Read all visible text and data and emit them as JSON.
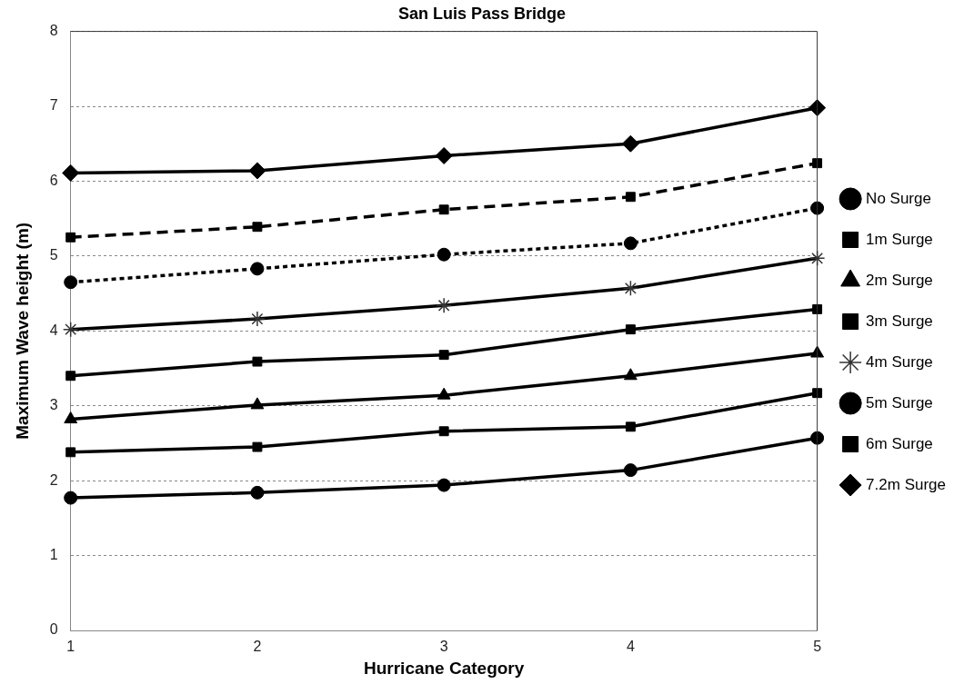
{
  "chart_data": {
    "type": "line",
    "title": "San Luis Pass Bridge",
    "xlabel": "Hurricane Category",
    "ylabel": "Maximum Wave height (m)",
    "categories": [
      "1",
      "2",
      "3",
      "4",
      "5"
    ],
    "ylim": [
      0,
      8
    ],
    "yticks": [
      0,
      1,
      2,
      3,
      4,
      5,
      6,
      7,
      8
    ],
    "grid": "y",
    "legend": "right",
    "series": [
      {
        "name": "No Surge",
        "color": "#000000",
        "marker": "circle",
        "line_style": "solid",
        "values": [
          1.77,
          1.84,
          1.94,
          2.14,
          2.57
        ]
      },
      {
        "name": "1m Surge",
        "color": "#000000",
        "marker": "square",
        "line_style": "solid",
        "values": [
          2.38,
          2.45,
          2.66,
          2.72,
          3.17
        ]
      },
      {
        "name": "2m Surge",
        "color": "#000000",
        "marker": "triangle",
        "line_style": "solid",
        "values": [
          2.82,
          3.01,
          3.14,
          3.4,
          3.7
        ]
      },
      {
        "name": "3m Surge",
        "color": "#000000",
        "marker": "square",
        "line_style": "solid",
        "values": [
          3.4,
          3.59,
          3.68,
          4.02,
          4.29
        ]
      },
      {
        "name": "4m Surge",
        "color": "#000000",
        "marker": "cross",
        "line_style": "solid",
        "values": [
          4.02,
          4.16,
          4.34,
          4.57,
          4.97
        ]
      },
      {
        "name": "5m Surge",
        "color": "#000000",
        "marker": "circle",
        "line_style": "dotted",
        "values": [
          4.65,
          4.83,
          5.02,
          5.17,
          5.64
        ]
      },
      {
        "name": "6m Surge",
        "color": "#000000",
        "marker": "square",
        "line_style": "dashed",
        "values": [
          5.25,
          5.39,
          5.62,
          5.79,
          6.24
        ]
      },
      {
        "name": "7.2m Surge",
        "color": "#000000",
        "marker": "diamond",
        "line_style": "solid",
        "values": [
          6.11,
          6.14,
          6.34,
          6.5,
          6.98
        ]
      }
    ]
  }
}
